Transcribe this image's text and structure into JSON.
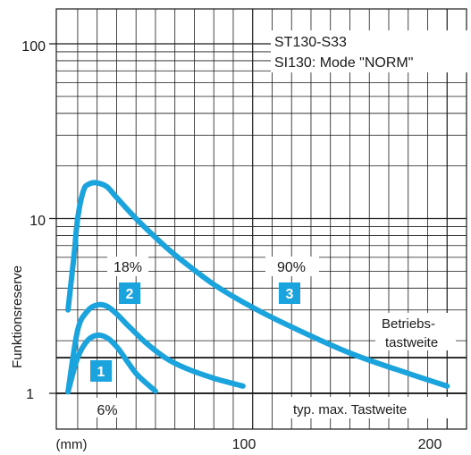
{
  "chart_data": {
    "type": "line",
    "title_lines": [
      "ST130-S33",
      "SI130: Mode \"NORM\""
    ],
    "ylabel": "Funktionsreserve",
    "x_unit_label": "(mm)",
    "xlim": [
      -1,
      210
    ],
    "ylim": [
      0.75,
      200
    ],
    "y_scale": "log",
    "x_ticks": [
      100,
      200
    ],
    "x_tick_labels": [
      "100",
      "200"
    ],
    "y_ticks": [
      1,
      10,
      100
    ],
    "y_tick_labels": [
      "1",
      "10",
      "100"
    ],
    "reference_lines": [
      {
        "label_lines": [
          "Betriebs-",
          "tastweite"
        ],
        "y": 1.6
      },
      {
        "label_lines": [
          "typ. max. Tastweite"
        ],
        "y": 1.0
      }
    ],
    "series": [
      {
        "badge": "1",
        "reflectance": "6%",
        "x": [
          5,
          10,
          15,
          20,
          25,
          30,
          35,
          40,
          45,
          50
        ],
        "y": [
          1.02,
          1.6,
          2.0,
          2.15,
          2.08,
          1.85,
          1.55,
          1.3,
          1.15,
          1.03
        ]
      },
      {
        "badge": "2",
        "reflectance": "18%",
        "x": [
          5,
          10,
          15,
          20,
          25,
          30,
          35,
          45,
          55,
          65,
          80,
          95
        ],
        "y": [
          1.02,
          2.3,
          2.95,
          3.2,
          3.15,
          2.85,
          2.5,
          1.95,
          1.6,
          1.4,
          1.22,
          1.1
        ]
      },
      {
        "badge": "3",
        "reflectance": "90%",
        "x": [
          5,
          8,
          10,
          13,
          16,
          20,
          25,
          30,
          40,
          50,
          60,
          80,
          100,
          120,
          150,
          180,
          200
        ],
        "y": [
          3.0,
          6.0,
          10.0,
          14.5,
          15.8,
          16.0,
          15.2,
          13.2,
          10.0,
          7.8,
          6.2,
          4.2,
          3.1,
          2.4,
          1.7,
          1.3,
          1.1
        ]
      }
    ]
  },
  "colors": {
    "curve": "#1aa3dc",
    "badge_fill": "#1aa3dc",
    "badge_text": "#ffffff",
    "grid": "#1a1a1a"
  }
}
